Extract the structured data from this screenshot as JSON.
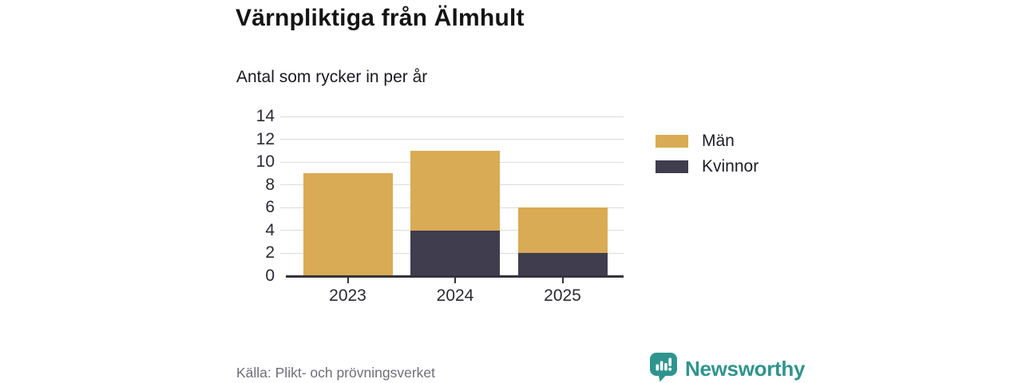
{
  "header": {
    "title": "Värnpliktiga från Älmhult",
    "subtitle": "Antal som rycker in per år"
  },
  "chart_data": {
    "type": "bar",
    "stacked": true,
    "title": "Värnpliktiga från Älmhult",
    "subtitle": "Antal som rycker in per år",
    "categories": [
      "2023",
      "2024",
      "2025"
    ],
    "series": [
      {
        "name": "Män",
        "color": "#D9AB54",
        "values": [
          9,
          7,
          4
        ]
      },
      {
        "name": "Kvinnor",
        "color": "#3F3D4E",
        "values": [
          0,
          4,
          2
        ]
      }
    ],
    "stack_order_bottom_to_top": [
      "Kvinnor",
      "Män"
    ],
    "stack_totals": [
      9,
      11,
      6
    ],
    "xlabel": "",
    "ylabel": "",
    "ylim": [
      0,
      14
    ],
    "yticks": [
      0,
      2,
      4,
      6,
      8,
      10,
      12,
      14
    ],
    "grid": true,
    "legend_position": "right"
  },
  "footer": {
    "source": "Källa: Plikt- och prövningsverket",
    "brand": {
      "name": "Newsworthy",
      "color": "#2F948E",
      "icon": "newsworthy-speech-bubble-chart-icon"
    }
  },
  "colors": {
    "axis": "#34323C",
    "gridline": "#DCDCDE",
    "tick_label": "#2B2A33",
    "title": "#141414",
    "source_text": "#6F6E78",
    "background": "#FFFFFF"
  }
}
